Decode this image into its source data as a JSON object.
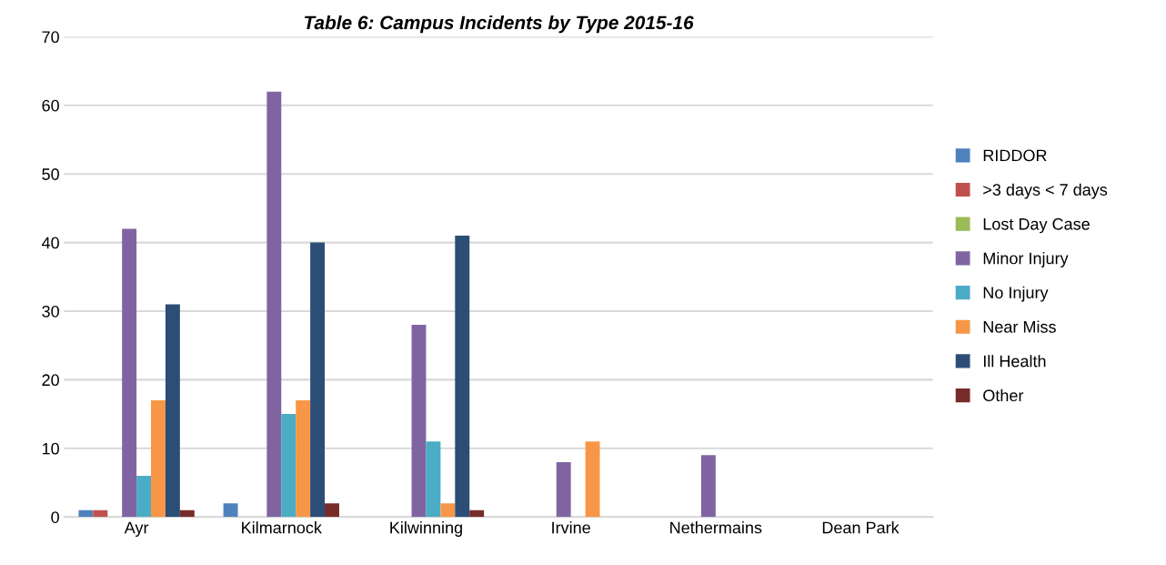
{
  "chart_data": {
    "type": "bar",
    "title": "Table 6: Campus Incidents by Type 2015-16",
    "categories": [
      "Ayr",
      "Kilmarnock",
      "Kilwinning",
      "Irvine",
      "Nethermains",
      "Dean Park"
    ],
    "series": [
      {
        "name": "RIDDOR",
        "color": "#4f81bd",
        "values": [
          1,
          2,
          0,
          0,
          0,
          0
        ]
      },
      {
        "name": ">3 days < 7 days",
        "color": "#c0504d",
        "values": [
          1,
          0,
          0,
          0,
          0,
          0
        ]
      },
      {
        "name": "Lost Day Case",
        "color": "#9bbb59",
        "values": [
          0,
          0,
          0,
          0,
          0,
          0
        ]
      },
      {
        "name": "Minor Injury",
        "color": "#8064a2",
        "values": [
          42,
          62,
          28,
          8,
          9,
          0
        ]
      },
      {
        "name": "No Injury",
        "color": "#4bacc6",
        "values": [
          6,
          15,
          11,
          0,
          0,
          0
        ]
      },
      {
        "name": "Near Miss",
        "color": "#f79646",
        "values": [
          17,
          17,
          2,
          11,
          0,
          0
        ]
      },
      {
        "name": "Ill Health",
        "color": "#2c4d75",
        "values": [
          31,
          40,
          41,
          0,
          0,
          0
        ]
      },
      {
        "name": "Other",
        "color": "#772c2a",
        "values": [
          1,
          2,
          1,
          0,
          0,
          0
        ]
      }
    ],
    "ylim": [
      0,
      70
    ],
    "yticks": [
      0,
      10,
      20,
      30,
      40,
      50,
      60,
      70
    ],
    "grid": "y",
    "legend": "right"
  }
}
